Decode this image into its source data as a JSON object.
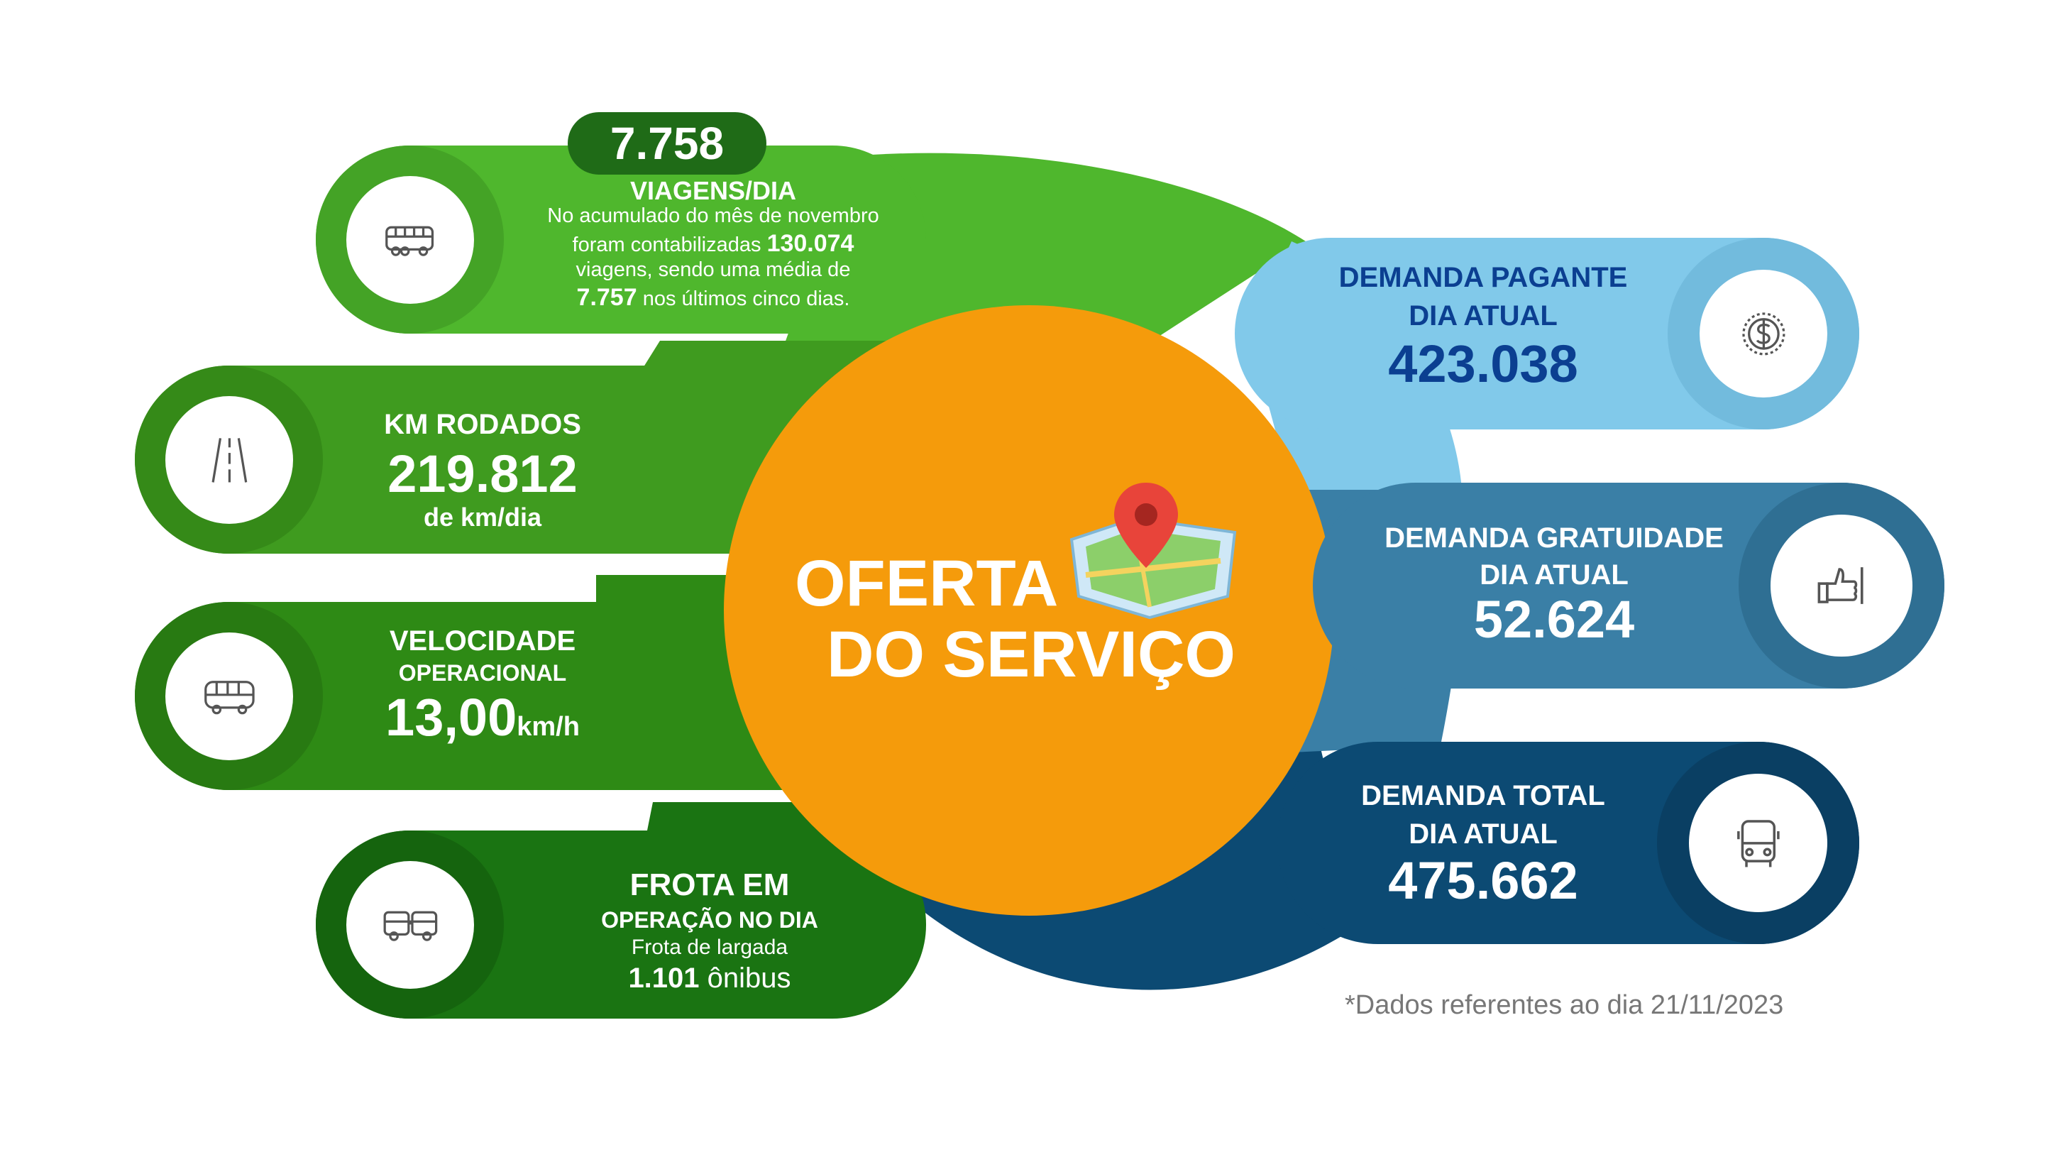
{
  "center": {
    "title_line1": "OFERTA",
    "title_line2": "DO SERVIÇO",
    "icon": "map-pin-icon"
  },
  "viagens": {
    "badge_value": "7.758",
    "label": "VIAGENS/DIA",
    "desc_line1": "No acumulado do mês de novembro",
    "desc_line2_pre": "foram contabilizadas",
    "desc_line2_value": "130.074",
    "desc_line3": "viagens, sendo uma média de",
    "desc_line4_value": "7.757",
    "desc_line4_post": "nos últimos cinco dias.",
    "icon": "coach-bus-icon"
  },
  "km": {
    "label": "KM RODADOS",
    "value": "219.812",
    "unit": "de km/dia",
    "icon": "road-icon"
  },
  "velocidade": {
    "label_line1": "VELOCIDADE",
    "label_line2": "OPERACIONAL",
    "value": "13,00",
    "unit": "km/h",
    "icon": "bus-icon"
  },
  "frota": {
    "label_line1": "FROTA EM",
    "label_line2": "OPERAÇÃO NO DIA",
    "desc": "Frota de largada",
    "value": "1.101",
    "unit": "ônibus",
    "icon": "articulated-bus-icon"
  },
  "pagante": {
    "label_line1": "DEMANDA PAGANTE",
    "label_line2": "DIA ATUAL",
    "value": "423.038",
    "icon": "dollar-coin-icon"
  },
  "gratuidade": {
    "label_line1": "DEMANDA GRATUIDADE",
    "label_line2": "DIA ATUAL",
    "value": "52.624",
    "icon": "thumbs-up-icon"
  },
  "total": {
    "label_line1": "DEMANDA TOTAL",
    "label_line2": "DIA ATUAL",
    "value": "475.662",
    "icon": "bus-front-icon"
  },
  "footnote": "*Dados referentes ao dia 21/11/2023",
  "colors": {
    "green_light": "#4fb72d",
    "green_mid": "#3f9b1f",
    "green_dark": "#2e8a15",
    "green_darkest": "#1a7412",
    "orange": "#f59b0b",
    "blue_light": "#81c9ea",
    "blue_mid": "#3a7fa6",
    "blue_dark": "#0c4a73"
  }
}
